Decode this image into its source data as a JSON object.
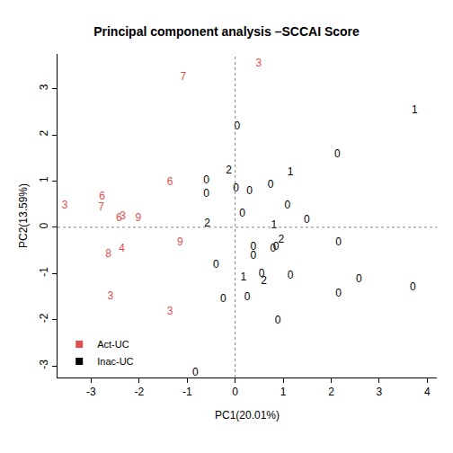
{
  "chart_data": {
    "type": "scatter",
    "title": "Principal component analysis –SCCAI Score",
    "x_label": "PC1(20.01%)",
    "y_label": "PC2(13.59%)",
    "marker": "text",
    "legend": "bottom-left",
    "grid": false,
    "xlim": [
      -3.7,
      4.2
    ],
    "ylim": [
      -3.25,
      3.75
    ],
    "xticks": [
      -3,
      -2,
      -1,
      0,
      1,
      2,
      3,
      4
    ],
    "yticks": [
      -3,
      -2,
      -1,
      0,
      1,
      2,
      3
    ],
    "series": [
      {
        "name": "Act-UC",
        "color": "#df5050",
        "x": [
          0.49,
          -1.08,
          -1.36,
          -2.77,
          -3.55,
          -2.79,
          -2.42,
          -2.34,
          -2.02,
          -1.15,
          -2.36,
          -2.64,
          -2.6,
          -1.36
        ],
        "y": [
          3.53,
          3.24,
          0.97,
          0.66,
          0.47,
          0.43,
          0.19,
          0.23,
          0.19,
          -0.33,
          -0.47,
          -0.58,
          -1.5,
          -1.83
        ],
        "labels": [
          "3",
          "7",
          "6",
          "6",
          "3",
          "7",
          "6",
          "3",
          "9",
          "9",
          "4",
          "8",
          "3",
          "3"
        ]
      },
      {
        "name": "Inac-UC",
        "color": "#000000",
        "x": [
          3.74,
          0.04,
          2.13,
          -0.13,
          1.15,
          -0.6,
          0.74,
          0.02,
          0.3,
          -0.6,
          1.09,
          0.15,
          -0.58,
          1.49,
          0.81,
          0.96,
          2.15,
          0.38,
          0.85,
          0.79,
          0.38,
          -0.4,
          0.17,
          0.55,
          0.6,
          1.15,
          2.58,
          3.7,
          2.15,
          -0.25,
          0.25,
          0.89,
          -0.83
        ],
        "y": [
          2.52,
          2.17,
          1.57,
          1.22,
          1.18,
          1.01,
          0.91,
          0.83,
          0.78,
          0.72,
          0.47,
          0.29,
          0.08,
          0.16,
          0.04,
          -0.27,
          -0.33,
          -0.43,
          -0.43,
          -0.47,
          -0.62,
          -0.82,
          -1.09,
          -1.01,
          -1.17,
          -1.05,
          -1.13,
          -1.3,
          -1.44,
          -1.55,
          -1.51,
          -2.02,
          -3.15
        ],
        "labels": [
          "1",
          "0",
          "0",
          "2",
          "1",
          "0",
          "0",
          "0",
          "0",
          "0",
          "0",
          "0",
          "2",
          "0",
          "1",
          "2",
          "0",
          "0",
          "0",
          "0",
          "0",
          "0",
          "1",
          "0",
          "2",
          "0",
          "0",
          "0",
          "0",
          "0",
          "0",
          "0",
          "0"
        ]
      }
    ]
  }
}
